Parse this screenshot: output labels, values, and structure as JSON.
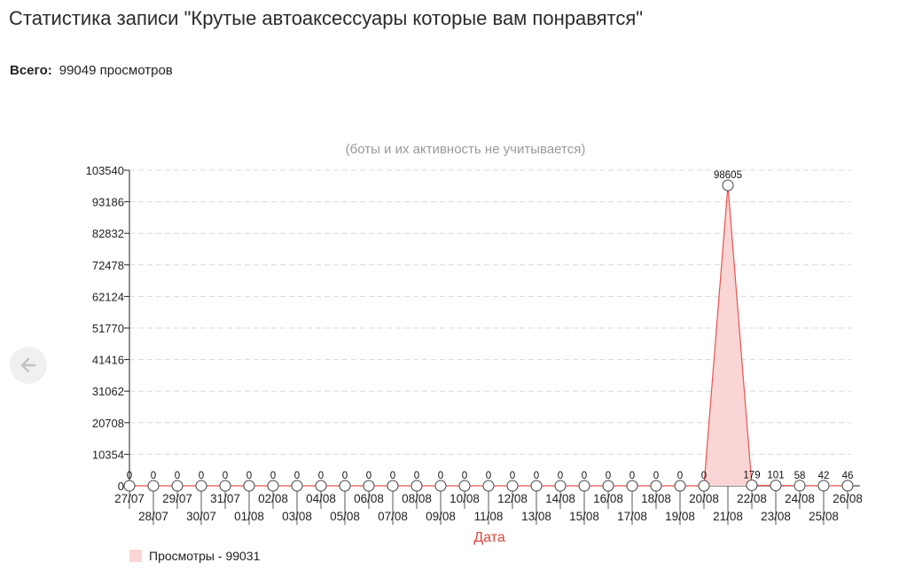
{
  "page": {
    "title": "Статистика записи \"Крутые автоаксессуары которые вам понравятся\"",
    "total_label": "Всего:",
    "total_value": "99049 просмотров"
  },
  "colors": {
    "line": "#e8534f",
    "fill": "#f9d6d5",
    "grid": "#d9d9d9",
    "axis": "#222222",
    "xlabel": "#e0463f"
  },
  "chart_data": {
    "type": "area",
    "title": "(боты и их активность не учитывается)",
    "xlabel": "Дата",
    "ylabel": "",
    "ylim": [
      0,
      103540
    ],
    "y_ticks": [
      0,
      10354,
      20708,
      31062,
      41416,
      51770,
      62124,
      72478,
      82832,
      93186,
      103540
    ],
    "grid": "horizontal-dashed",
    "legend": "bottom-left",
    "categories": [
      "27/07",
      "28/07",
      "29/07",
      "30/07",
      "31/07",
      "01/08",
      "02/08",
      "03/08",
      "04/08",
      "05/08",
      "06/08",
      "07/08",
      "08/08",
      "09/08",
      "10/08",
      "11/08",
      "12/08",
      "13/08",
      "14/08",
      "15/08",
      "16/08",
      "17/08",
      "18/08",
      "19/08",
      "20/08",
      "21/08",
      "22/08",
      "23/08",
      "24/08",
      "25/08",
      "26/08"
    ],
    "series": [
      {
        "name": "Просмотры - 99031",
        "values": [
          0,
          0,
          0,
          0,
          0,
          0,
          0,
          0,
          0,
          0,
          0,
          0,
          0,
          0,
          0,
          0,
          0,
          0,
          0,
          0,
          0,
          0,
          0,
          0,
          0,
          98605,
          179,
          101,
          58,
          42,
          46
        ]
      }
    ]
  }
}
